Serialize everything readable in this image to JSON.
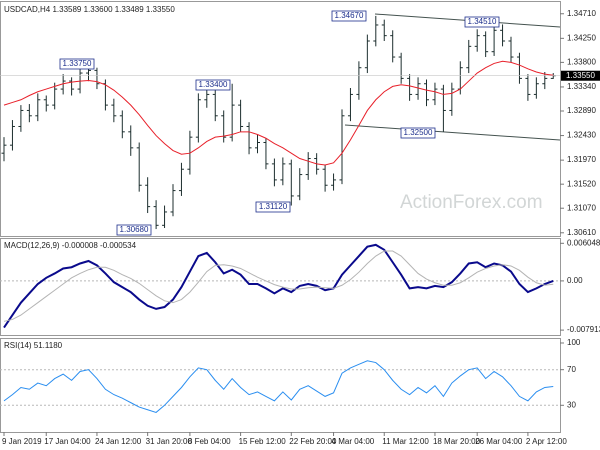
{
  "chart_data": [
    {
      "type": "ohlc",
      "title": "USDCAD,H4 1.33589 1.33600 1.33489 1.33550",
      "watermark": "ActionForex.com",
      "categories": [
        "9 Jan 2019",
        null,
        null,
        null,
        null,
        "17 Jan 04:00",
        null,
        null,
        null,
        null,
        null,
        "24 Jan 12:00",
        null,
        null,
        null,
        null,
        null,
        "31 Jan 20:00",
        null,
        null,
        null,
        null,
        "8 Feb 04:00",
        null,
        null,
        null,
        null,
        null,
        "15 Feb 12:00",
        null,
        null,
        null,
        null,
        null,
        "22 Feb 20:00",
        null,
        null,
        null,
        null,
        "4 Mar 04:00",
        null,
        null,
        null,
        null,
        null,
        "11 Mar 12:00",
        null,
        null,
        null,
        null,
        null,
        "18 Mar 20:00",
        null,
        null,
        null,
        null,
        "26 Mar 04:00",
        null,
        null,
        null,
        null,
        null,
        "2 Apr 12:00",
        null,
        null,
        null
      ],
      "color": "#1c2e2e",
      "ohlc": [
        [
          1.321,
          1.324,
          1.3195,
          1.3225
        ],
        [
          1.3225,
          1.3272,
          1.3215,
          1.326
        ],
        [
          1.326,
          1.33,
          1.325,
          1.329
        ],
        [
          1.329,
          1.3302,
          1.3268,
          1.328
        ],
        [
          1.328,
          1.3322,
          1.327,
          1.331
        ],
        [
          1.331,
          1.3318,
          1.3288,
          1.33
        ],
        [
          1.33,
          1.3342,
          1.3292,
          1.333
        ],
        [
          1.333,
          1.3358,
          1.332,
          1.3345
        ],
        [
          1.3345,
          1.3352,
          1.3318,
          1.333
        ],
        [
          1.333,
          1.337,
          1.3322,
          1.336
        ],
        [
          1.336,
          1.3375,
          1.3345,
          1.3365
        ],
        [
          1.3365,
          1.337,
          1.333,
          1.334
        ],
        [
          1.334,
          1.3348,
          1.329,
          1.33
        ],
        [
          1.33,
          1.3312,
          1.3268,
          1.328
        ],
        [
          1.328,
          1.329,
          1.3238,
          1.325
        ],
        [
          1.325,
          1.3262,
          1.3205,
          1.322
        ],
        [
          1.322,
          1.323,
          1.3138,
          1.315
        ],
        [
          1.315,
          1.3165,
          1.3098,
          1.311
        ],
        [
          1.311,
          1.3122,
          1.3068,
          1.3075
        ],
        [
          1.3075,
          1.3112,
          1.307,
          1.31
        ],
        [
          1.31,
          1.3152,
          1.3092,
          1.314
        ],
        [
          1.314,
          1.3192,
          1.313,
          1.318
        ],
        [
          1.318,
          1.3252,
          1.317,
          1.324
        ],
        [
          1.324,
          1.3322,
          1.323,
          1.331
        ],
        [
          1.331,
          1.334,
          1.3295,
          1.332
        ],
        [
          1.332,
          1.3328,
          1.327,
          1.328
        ],
        [
          1.328,
          1.329,
          1.323,
          1.324
        ],
        [
          1.324,
          1.334,
          1.3232,
          1.33
        ],
        [
          1.33,
          1.331,
          1.325,
          1.326
        ],
        [
          1.326,
          1.3268,
          1.3208,
          1.322
        ],
        [
          1.322,
          1.3245,
          1.321,
          1.323
        ],
        [
          1.323,
          1.3238,
          1.318,
          1.319
        ],
        [
          1.319,
          1.32,
          1.3148,
          1.316
        ],
        [
          1.316,
          1.3202,
          1.315,
          1.319
        ],
        [
          1.319,
          1.3198,
          1.3112,
          1.313
        ],
        [
          1.313,
          1.3182,
          1.3122,
          1.317
        ],
        [
          1.317,
          1.3212,
          1.316,
          1.32
        ],
        [
          1.32,
          1.321,
          1.317,
          1.318
        ],
        [
          1.318,
          1.3188,
          1.3138,
          1.315
        ],
        [
          1.315,
          1.3172,
          1.314,
          1.316
        ],
        [
          1.316,
          1.3292,
          1.3152,
          1.328
        ],
        [
          1.328,
          1.3332,
          1.327,
          1.332
        ],
        [
          1.332,
          1.3382,
          1.331,
          1.337
        ],
        [
          1.337,
          1.3432,
          1.336,
          1.342
        ],
        [
          1.342,
          1.3467,
          1.341,
          1.345
        ],
        [
          1.345,
          1.346,
          1.342,
          1.343
        ],
        [
          1.343,
          1.344,
          1.338,
          1.339
        ],
        [
          1.339,
          1.3398,
          1.334,
          1.335
        ],
        [
          1.335,
          1.3358,
          1.3308,
          1.332
        ],
        [
          1.332,
          1.3352,
          1.331,
          1.334
        ],
        [
          1.334,
          1.3348,
          1.3298,
          1.331
        ],
        [
          1.331,
          1.3342,
          1.33,
          1.333
        ],
        [
          1.333,
          1.3338,
          1.325,
          1.329
        ],
        [
          1.329,
          1.3342,
          1.328,
          1.333
        ],
        [
          1.333,
          1.3382,
          1.332,
          1.337
        ],
        [
          1.337,
          1.3422,
          1.336,
          1.341
        ],
        [
          1.341,
          1.3442,
          1.34,
          1.343
        ],
        [
          1.343,
          1.3438,
          1.339,
          1.34
        ],
        [
          1.34,
          1.345,
          1.3392,
          1.344
        ],
        [
          1.344,
          1.3451,
          1.341,
          1.342
        ],
        [
          1.342,
          1.3428,
          1.338,
          1.339
        ],
        [
          1.339,
          1.3398,
          1.334,
          1.335
        ],
        [
          1.335,
          1.3358,
          1.3308,
          1.332
        ],
        [
          1.332,
          1.3352,
          1.3312,
          1.334
        ],
        [
          1.334,
          1.3362,
          1.333,
          1.335
        ],
        [
          1.335,
          1.336,
          1.3349,
          1.3355
        ]
      ],
      "ma_color": "#e8202a",
      "ma_values": [
        1.33,
        1.3305,
        1.331,
        1.3318,
        1.3325,
        1.333,
        1.3335,
        1.334,
        1.3343,
        1.3345,
        1.3346,
        1.3344,
        1.3338,
        1.3328,
        1.3315,
        1.33,
        1.3282,
        1.3262,
        1.3243,
        1.3228,
        1.3215,
        1.3208,
        1.321,
        1.322,
        1.3232,
        1.324,
        1.3242,
        1.3245,
        1.325,
        1.325,
        1.3245,
        1.3238,
        1.3228,
        1.322,
        1.321,
        1.32,
        1.3195,
        1.319,
        1.3188,
        1.3192,
        1.321,
        1.3235,
        1.3262,
        1.329,
        1.331,
        1.3325,
        1.3335,
        1.3338,
        1.3336,
        1.3332,
        1.3328,
        1.3325,
        1.332,
        1.3322,
        1.333,
        1.3345,
        1.336,
        1.337,
        1.3378,
        1.3382,
        1.338,
        1.3375,
        1.3368,
        1.3362,
        1.3358,
        1.3356
      ],
      "ylim": [
        1.3055,
        1.3493
      ],
      "yticks": [
        {
          "value": 1.3471,
          "label": "1.34710"
        },
        {
          "value": 1.3425,
          "label": "1.34250"
        },
        {
          "value": 1.338,
          "label": "1.33800"
        },
        {
          "value": 1.3334,
          "label": "1.33340"
        },
        {
          "value": 1.3289,
          "label": "1.32890"
        },
        {
          "value": 1.3243,
          "label": "1.32430"
        },
        {
          "value": 1.3197,
          "label": "1.31970"
        },
        {
          "value": 1.3152,
          "label": "1.31520"
        },
        {
          "value": 1.3107,
          "label": "1.31070"
        },
        {
          "value": 1.3061,
          "label": "1.30610"
        }
      ],
      "current_price": {
        "value": 1.3355,
        "label": "1.33550"
      },
      "annotations": [
        "1.33750",
        "1.33400",
        "1.30680",
        "1.31120",
        "1.34670",
        "1.32500",
        "1.34510"
      ]
    },
    {
      "type": "line",
      "title": "MACD(12,26,9) -0.000008 -0.000534",
      "series": [
        {
          "color": "#0a0a8c",
          "values": [
            -0.0075,
            -0.0055,
            -0.0035,
            -0.002,
            -0.0005,
            0.0005,
            0.0012,
            0.002,
            0.0022,
            0.0028,
            0.0032,
            0.0025,
            0.0012,
            -0.0002,
            -0.001,
            -0.0018,
            -0.003,
            -0.004,
            -0.0045,
            -0.0042,
            -0.003,
            -0.001,
            0.0015,
            0.004,
            0.0045,
            0.003,
            0.0012,
            0.0018,
            0.001,
            -0.0005,
            -0.0005,
            -0.0012,
            -0.002,
            -0.0012,
            -0.0018,
            -0.0008,
            -0.0005,
            -0.0008,
            -0.0015,
            -0.0012,
            0.001,
            0.0025,
            0.004,
            0.0055,
            0.0058,
            0.005,
            0.003,
            0.001,
            -0.0012,
            -0.001,
            -0.0012,
            -0.0008,
            -0.001,
            -0.0002,
            0.0012,
            0.0028,
            0.003,
            0.0022,
            0.0028,
            0.0025,
            0.0015,
            -0.0005,
            -0.0018,
            -0.0012,
            -0.0005,
            -8e-06
          ]
        },
        {
          "color": "#b4b4b4",
          "values": [
            -0.0065,
            -0.0062,
            -0.0055,
            -0.0045,
            -0.0035,
            -0.0025,
            -0.0015,
            -0.0005,
            0.0005,
            0.0012,
            0.0018,
            0.0022,
            0.0022,
            0.0017,
            0.001,
            0.0004,
            -0.0004,
            -0.0014,
            -0.0024,
            -0.0032,
            -0.0035,
            -0.003,
            -0.0018,
            -0.0002,
            0.0015,
            0.0025,
            0.0026,
            0.0024,
            0.002,
            0.0013,
            0.0006,
            0,
            -0.0006,
            -0.001,
            -0.0013,
            -0.0013,
            -0.0011,
            -0.001,
            -0.0011,
            -0.0012,
            -0.0007,
            0.0002,
            0.0014,
            0.0028,
            0.004,
            0.0048,
            0.0048,
            0.004,
            0.0026,
            0.0012,
            0.0003,
            -0.0003,
            -0.0007,
            -0.0007,
            -0.0003,
            0.0005,
            0.0014,
            0.002,
            0.0024,
            0.0026,
            0.0024,
            0.0017,
            0.0006,
            -0.0003,
            -0.0007,
            -0.000534
          ]
        }
      ],
      "ylim": [
        -0.0087,
        0.0069
      ],
      "yticks": [
        0.006048,
        {
          "value": 0,
          "label": "0.00"
        },
        -0.007913
      ],
      "levels": [
        0
      ]
    },
    {
      "type": "line",
      "title": "RSI(14) 51.1180",
      "series": [
        {
          "color": "#2a8ef0",
          "values": [
            35,
            42,
            50,
            48,
            55,
            52,
            60,
            65,
            58,
            68,
            70,
            60,
            48,
            42,
            38,
            33,
            28,
            25,
            22,
            30,
            40,
            50,
            62,
            72,
            70,
            58,
            48,
            60,
            50,
            42,
            45,
            40,
            35,
            45,
            36,
            48,
            52,
            46,
            40,
            44,
            66,
            72,
            76,
            80,
            78,
            70,
            58,
            48,
            42,
            50,
            44,
            52,
            40,
            55,
            63,
            70,
            72,
            60,
            68,
            62,
            52,
            40,
            35,
            45,
            50,
            51.118
          ]
        }
      ],
      "ylim": [
        0,
        105.6
      ],
      "yticks": [
        100,
        70,
        30
      ],
      "levels": [
        70,
        30
      ]
    }
  ]
}
